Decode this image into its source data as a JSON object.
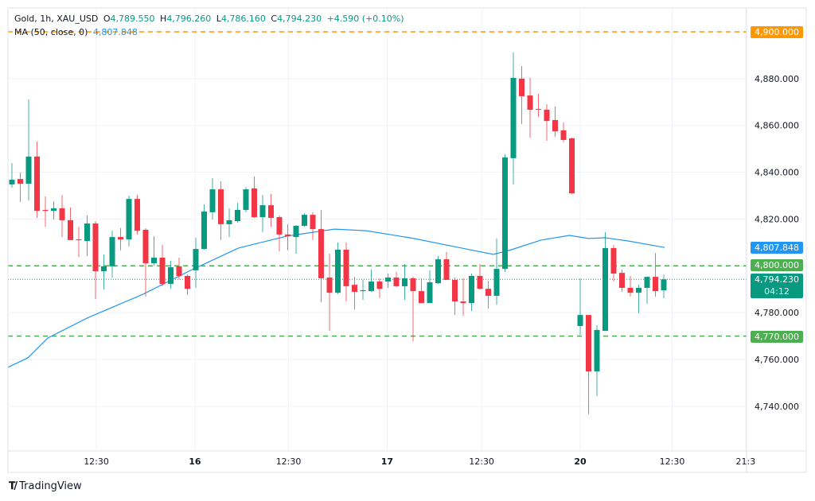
{
  "legend": {
    "symbol": "Gold, 1h, XAU_USD",
    "open_label": "O",
    "open": "4,789.550",
    "high_label": "H",
    "high": "4,796.260",
    "low_label": "L",
    "low": "4,786.160",
    "close_label": "C",
    "close": "4,794.230",
    "change": "+4.590 (+0.10%)",
    "ma_label": "MA (50, close, 0)",
    "ma_value": "4,807.848"
  },
  "price_tags": {
    "level_4900": "4,900.000",
    "ma": "4,807.848",
    "level_4800": "4,800.000",
    "last": "4,794.230",
    "countdown": "04:12",
    "level_4770": "4,770.000"
  },
  "brand": "TradingView",
  "colors": {
    "up": "#089981",
    "down": "#f23645",
    "ma": "#2196f3",
    "orange": "#ff9800",
    "green_level": "#4caf50",
    "grid": "#f0f3fa"
  },
  "chart_data": {
    "type": "candlestick",
    "title": "Gold, 1h, XAU_USD",
    "ylim": [
      4720,
      4910
    ],
    "y_ticks": [
      {
        "value": 4740,
        "label": "4,740.000"
      },
      {
        "value": 4760,
        "label": "4,760.000"
      },
      {
        "value": 4780,
        "label": "4,780.000"
      },
      {
        "value": 4820,
        "label": "4,820.000"
      },
      {
        "value": 4840,
        "label": "4,840.000"
      },
      {
        "value": 4860,
        "label": "4,860.000"
      },
      {
        "value": 4880,
        "label": "4,880.000"
      }
    ],
    "x_ticks": [
      {
        "bar": 11.1,
        "label": "12:30",
        "bold": false
      },
      {
        "bar": 22.9,
        "label": "16",
        "bold": true
      },
      {
        "bar": 34.1,
        "label": "12:30",
        "bold": false
      },
      {
        "bar": 45.9,
        "label": "17",
        "bold": true
      },
      {
        "bar": 57.2,
        "label": "12:30",
        "bold": false
      },
      {
        "bar": 69,
        "label": "20",
        "bold": true
      },
      {
        "bar": 80,
        "label": "12:30",
        "bold": false
      },
      {
        "bar": 88.8,
        "label": "21:3",
        "bold": false
      }
    ],
    "horizontal_lines": [
      {
        "price": 4900,
        "color": "#ff9800",
        "style": "dashed"
      },
      {
        "price": 4800,
        "color": "#4caf50",
        "style": "dashed"
      },
      {
        "price": 4770,
        "color": "#4caf50",
        "style": "dashed"
      },
      {
        "price": 4794.23,
        "color": "#089981",
        "style": "dotted"
      }
    ],
    "ohlc": [
      [
        4834.8,
        4843.9,
        4833.4,
        4836.8
      ],
      [
        4837.1,
        4839.9,
        4827.3,
        4835.1
      ],
      [
        4835.1,
        4871.1,
        4827.9,
        4846.7
      ],
      [
        4846.7,
        4853.1,
        4820.5,
        4823.5
      ],
      [
        4823.9,
        4829.7,
        4816.7,
        4823.5
      ],
      [
        4823.5,
        4827.6,
        4819.8,
        4824.6
      ],
      [
        4824.6,
        4830.3,
        4812.3,
        4819.5
      ],
      [
        4819.5,
        4824.9,
        4811.0,
        4811.0
      ],
      [
        4811.3,
        4816.7,
        4803.8,
        4811.0
      ],
      [
        4810.6,
        4821.5,
        4804.2,
        4818.1
      ],
      [
        4818.1,
        4819.1,
        4785.8,
        4797.7
      ],
      [
        4797.7,
        4804.9,
        4789.9,
        4799.8
      ],
      [
        4799.8,
        4815.0,
        4795.0,
        4812.3
      ],
      [
        4812.3,
        4816.1,
        4806.6,
        4811.3
      ],
      [
        4811.3,
        4830.0,
        4808.3,
        4828.6
      ],
      [
        4828.6,
        4830.3,
        4813.4,
        4815.0
      ],
      [
        4815.4,
        4816.1,
        4786.8,
        4801.1
      ],
      [
        4801.1,
        4812.7,
        4800.1,
        4803.5
      ],
      [
        4803.5,
        4808.9,
        4791.3,
        4792.3
      ],
      [
        4792.3,
        4802.1,
        4790.2,
        4799.4
      ],
      [
        4799.8,
        4803.5,
        4794.3,
        4795.7
      ],
      [
        4795.7,
        4796.4,
        4787.5,
        4790.2
      ],
      [
        4798.1,
        4812.0,
        4790.6,
        4807.2
      ],
      [
        4807.2,
        4826.3,
        4806.9,
        4823.2
      ],
      [
        4822.9,
        4837.5,
        4819.8,
        4832.7
      ],
      [
        4832.7,
        4836.1,
        4811.0,
        4817.8
      ],
      [
        4817.8,
        4824.6,
        4812.3,
        4819.5
      ],
      [
        4819.1,
        4826.9,
        4818.4,
        4823.9
      ],
      [
        4823.9,
        4833.7,
        4822.9,
        4832.7
      ],
      [
        4833.1,
        4838.2,
        4820.5,
        4820.8
      ],
      [
        4820.8,
        4830.3,
        4814.4,
        4825.9
      ],
      [
        4825.9,
        4830.7,
        4816.7,
        4820.5
      ],
      [
        4820.8,
        4821.5,
        4806.2,
        4813.4
      ],
      [
        4813.4,
        4817.8,
        4806.6,
        4812.7
      ],
      [
        4812.3,
        4817.4,
        4805.2,
        4817.1
      ],
      [
        4817.1,
        4822.5,
        4816.7,
        4821.8
      ],
      [
        4821.8,
        4822.9,
        4811.0,
        4815.7
      ],
      [
        4815.7,
        4823.9,
        4784.5,
        4794.7
      ],
      [
        4795.0,
        4805.2,
        4772.2,
        4788.5
      ],
      [
        4788.5,
        4810.0,
        4787.9,
        4806.9
      ],
      [
        4806.9,
        4810.0,
        4784.8,
        4791.3
      ],
      [
        4791.9,
        4795.3,
        4781.4,
        4788.9
      ],
      [
        4789.2,
        4794.0,
        4785.5,
        4789.6
      ],
      [
        4789.2,
        4798.4,
        4788.9,
        4793.3
      ],
      [
        4793.3,
        4794.7,
        4786.2,
        4790.2
      ],
      [
        4793.3,
        4796.7,
        4790.6,
        4795.0
      ],
      [
        4795.0,
        4797.4,
        4790.9,
        4791.3
      ],
      [
        4791.3,
        4800.8,
        4785.5,
        4794.7
      ],
      [
        4794.7,
        4795.3,
        4767.8,
        4789.2
      ],
      [
        4789.2,
        4794.7,
        4784.1,
        4784.1
      ],
      [
        4784.1,
        4798.1,
        4784.1,
        4793.0
      ],
      [
        4792.6,
        4804.2,
        4792.3,
        4802.8
      ],
      [
        4802.8,
        4805.9,
        4794.0,
        4794.0
      ],
      [
        4794.0,
        4795.0,
        4779.0,
        4784.8
      ],
      [
        4784.8,
        4794.7,
        4778.7,
        4784.1
      ],
      [
        4784.1,
        4796.7,
        4780.7,
        4795.7
      ],
      [
        4795.7,
        4800.8,
        4789.9,
        4790.2
      ],
      [
        4790.2,
        4793.6,
        4781.7,
        4787.2
      ],
      [
        4787.2,
        4811.7,
        4783.4,
        4798.7
      ],
      [
        4798.7,
        4847.7,
        4797.4,
        4846.3
      ],
      [
        4846.0,
        4891.2,
        4834.8,
        4880.3
      ],
      [
        4880.0,
        4885.4,
        4860.6,
        4872.5
      ],
      [
        4872.8,
        4880.3,
        4854.8,
        4866.7
      ],
      [
        4867.0,
        4873.5,
        4863.6,
        4866.8
      ],
      [
        4866.7,
        4869.1,
        4853.4,
        4861.9
      ],
      [
        4862.3,
        4868.1,
        4855.1,
        4857.5
      ],
      [
        4857.9,
        4861.3,
        4852.8,
        4853.8
      ],
      [
        4854.5,
        4854.8,
        4830.7,
        4831.0
      ],
      [
        4774.3,
        4794.7,
        4770.5,
        4779.0
      ],
      [
        4779.0,
        4779.0,
        4736.6,
        4754.9
      ],
      [
        4754.9,
        4774.6,
        4744.4,
        4772.6
      ],
      [
        4772.2,
        4814.4,
        4772.2,
        4807.6
      ],
      [
        4807.6,
        4808.9,
        4793.3,
        4796.7
      ],
      [
        4797.0,
        4798.4,
        4788.9,
        4790.6
      ],
      [
        4790.6,
        4795.7,
        4786.8,
        4788.5
      ],
      [
        4788.5,
        4791.9,
        4779.7,
        4790.6
      ],
      [
        4790.6,
        4795.3,
        4783.8,
        4795.3
      ],
      [
        4795.3,
        4805.5,
        4786.8,
        4789.2
      ],
      [
        4789.55,
        4796.26,
        4786.16,
        4794.23
      ]
    ],
    "ma_series": {
      "name": "MA (50, close, 0)",
      "points": [
        [
          0.5,
          4756.6
        ],
        [
          2.9,
          4760.7
        ],
        [
          5.3,
          4769.2
        ],
        [
          10,
          4777.7
        ],
        [
          16.7,
          4787.9
        ],
        [
          22.4,
          4798.1
        ],
        [
          28.1,
          4807.6
        ],
        [
          33.9,
          4812.7
        ],
        [
          39.6,
          4815.7
        ],
        [
          43.4,
          4815.0
        ],
        [
          49.1,
          4811.7
        ],
        [
          54.8,
          4807.6
        ],
        [
          58.6,
          4804.9
        ],
        [
          60.5,
          4806.6
        ],
        [
          64.3,
          4811.0
        ],
        [
          67.7,
          4813.0
        ],
        [
          70,
          4811.7
        ],
        [
          72,
          4812.0
        ],
        [
          74.8,
          4810.6
        ],
        [
          79.1,
          4807.848
        ]
      ]
    }
  }
}
